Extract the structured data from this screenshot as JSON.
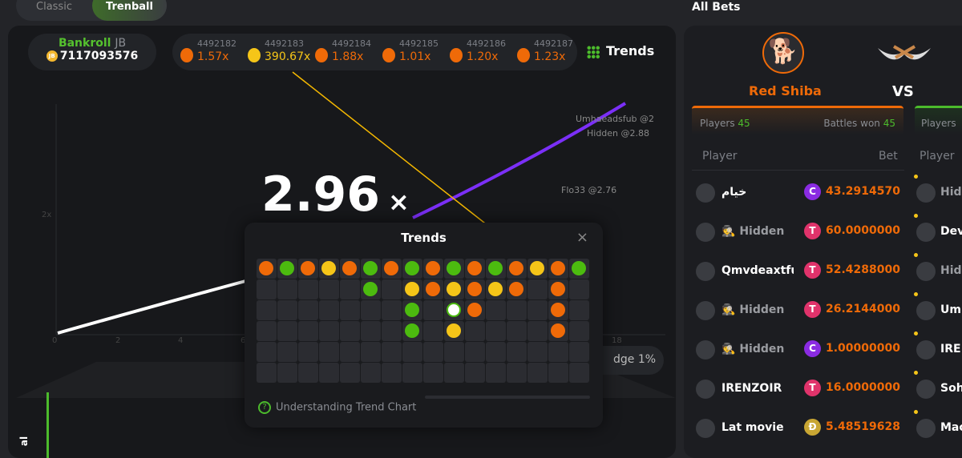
{
  "mode_tabs": [
    "Classic",
    "Trenball"
  ],
  "bankroll": {
    "label": "Bankroll",
    "unit": "JB",
    "coin": "JB",
    "value": "7117093576"
  },
  "history": [
    {
      "id": "4492182",
      "mult": "1.57x",
      "color": "#ef6a08"
    },
    {
      "id": "4492183",
      "mult": "390.67x",
      "color": "#f5c518"
    },
    {
      "id": "4492184",
      "mult": "1.88x",
      "color": "#ef6a08"
    },
    {
      "id": "4492185",
      "mult": "1.01x",
      "color": "#ef6a08"
    },
    {
      "id": "4492186",
      "mult": "1.20x",
      "color": "#ef6a08"
    },
    {
      "id": "4492187",
      "mult": "1.23x",
      "color": "#ef6a08"
    }
  ],
  "trends_button": "Trends",
  "graph": {
    "y_label": "2x",
    "x_ticks": [
      "0",
      "2",
      "4",
      "6",
      "18"
    ],
    "multiplier": "2.96",
    "mult_suffix": "×",
    "cashouts": [
      "Umhaeadsfub @2",
      "Hidden @2.88",
      "Flo33 @2.76"
    ],
    "edge": "dge 1%"
  },
  "trends_modal": {
    "title": "Trends",
    "close": "×",
    "help": "Understanding Trend Chart",
    "colors": {
      "o": "#ef6a08",
      "g": "#4cbb0f",
      "y": "#f5c518",
      "w": "#ffffff"
    },
    "columns": [
      "o",
      "g",
      "o",
      "y",
      "o",
      "gg",
      "o",
      "gygg",
      "oo",
      "gywy",
      "ooo",
      "gy",
      "oo",
      "y",
      "oooo",
      "g"
    ]
  },
  "bottom_label": "al",
  "all_bets": {
    "title": "All Bets",
    "team1": {
      "name": "Red Shiba",
      "players_label": "Players",
      "players": "45",
      "won_label": "Battles won",
      "won": "45"
    },
    "vs": "VS",
    "team2": {
      "players_label": "Players"
    },
    "headers": {
      "player": "Player",
      "bet": "Bet",
      "player2": "Player"
    },
    "rows": [
      {
        "name": "خيام",
        "hidden": false,
        "currency": "C",
        "cur_color": "#8a2be2",
        "bet": "43.2914570",
        "right": "Hidden",
        "right_hidden": true
      },
      {
        "name": "Hidden",
        "hidden": true,
        "currency": "T",
        "cur_color": "#e0336b",
        "bet": "60.0000000",
        "right": "Dev",
        "right_hidden": false
      },
      {
        "name": "Qmvdeaxtful",
        "hidden": false,
        "currency": "T",
        "cur_color": "#e0336b",
        "bet": "52.4288000",
        "right": "Hidden",
        "right_hidden": true
      },
      {
        "name": "Hidden",
        "hidden": true,
        "currency": "T",
        "cur_color": "#e0336b",
        "bet": "26.2144000",
        "right": "Um",
        "right_hidden": false
      },
      {
        "name": "Hidden",
        "hidden": true,
        "currency": "C",
        "cur_color": "#8a2be2",
        "bet": "1.00000000",
        "right": "IRE",
        "right_hidden": false
      },
      {
        "name": "IRENZOIR",
        "hidden": false,
        "currency": "T",
        "cur_color": "#e0336b",
        "bet": "16.0000000",
        "right": "Soh",
        "right_hidden": false
      },
      {
        "name": "Lat movie",
        "hidden": false,
        "currency": "Đ",
        "cur_color": "#c8a633",
        "bet": "5.48519628",
        "right": "Mac",
        "right_hidden": false
      }
    ]
  }
}
